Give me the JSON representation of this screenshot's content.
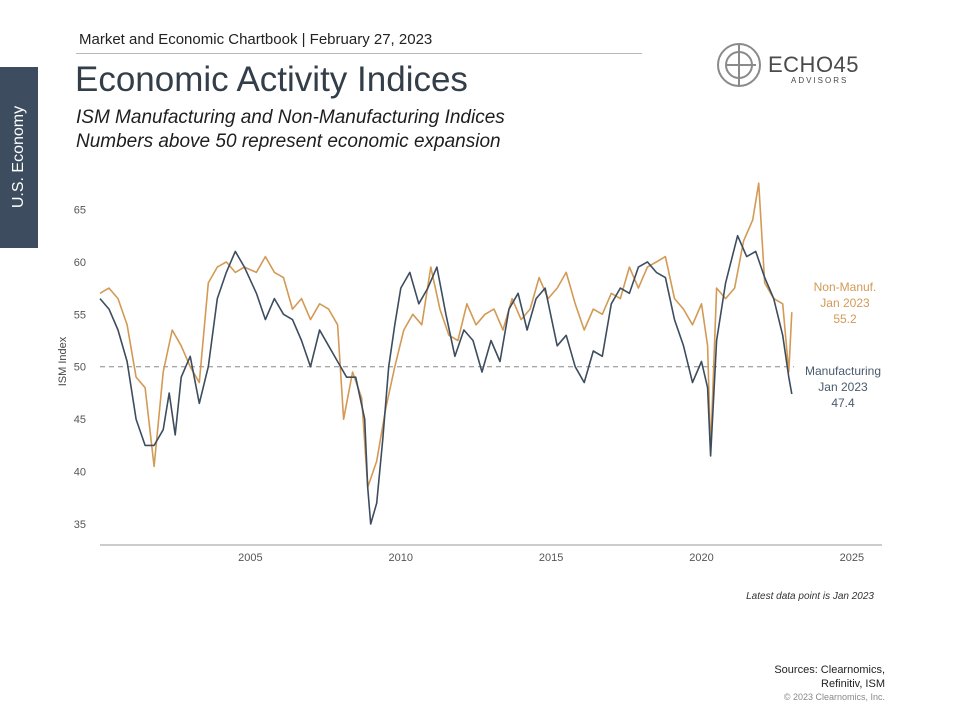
{
  "sidebar": {
    "label": "U.S. Economy"
  },
  "header": {
    "text": "Market and Economic Chartbook | February 27, 2023"
  },
  "title": "Economic Activity Indices",
  "subtitle": {
    "line1": "ISM Manufacturing and Non-Manufacturing Indices",
    "line2": "Numbers above 50 represent economic expansion"
  },
  "logo": {
    "word": "ECHO45",
    "sub": "ADVISORS"
  },
  "annotations": {
    "non_manuf": {
      "line1": "Non-Manuf.",
      "line2": "Jan 2023",
      "line3": "55.2"
    },
    "manuf": {
      "line1": "Manufacturing",
      "line2": "Jan 2023",
      "line3": "47.4"
    }
  },
  "note": "Latest data point is Jan 2023",
  "sources": {
    "line1": "Sources: Clearnomics,",
    "line2": "Refinitiv, ISM"
  },
  "copyright": "© 2023 Clearnomics, Inc.",
  "colors": {
    "manufacturing": "#3d4d5f",
    "non_manufacturing": "#d39a55",
    "reference": "#888888"
  },
  "chart_data": {
    "type": "line",
    "ylabel": "ISM Index",
    "xlim": [
      2000.0,
      2026.0
    ],
    "ylim": [
      33,
      68
    ],
    "x_ticks": [
      2005,
      2010,
      2015,
      2020,
      2025
    ],
    "y_ticks": [
      35,
      40,
      45,
      50,
      55,
      60,
      65
    ],
    "reference_line": 50,
    "series": [
      {
        "name": "Manufacturing",
        "points": [
          [
            2000.0,
            56.5
          ],
          [
            2000.3,
            55.5
          ],
          [
            2000.6,
            53.5
          ],
          [
            2000.9,
            50.5
          ],
          [
            2001.2,
            45.0
          ],
          [
            2001.5,
            42.5
          ],
          [
            2001.8,
            42.5
          ],
          [
            2002.1,
            44.0
          ],
          [
            2002.3,
            47.5
          ],
          [
            2002.5,
            43.5
          ],
          [
            2002.7,
            49.0
          ],
          [
            2003.0,
            51.0
          ],
          [
            2003.3,
            46.5
          ],
          [
            2003.6,
            50.0
          ],
          [
            2003.9,
            56.5
          ],
          [
            2004.2,
            59.0
          ],
          [
            2004.5,
            61.0
          ],
          [
            2004.8,
            59.5
          ],
          [
            2005.2,
            57.0
          ],
          [
            2005.5,
            54.5
          ],
          [
            2005.8,
            56.5
          ],
          [
            2006.1,
            55.0
          ],
          [
            2006.4,
            54.5
          ],
          [
            2006.7,
            52.5
          ],
          [
            2007.0,
            50.0
          ],
          [
            2007.3,
            53.5
          ],
          [
            2007.6,
            52.0
          ],
          [
            2007.9,
            50.5
          ],
          [
            2008.2,
            49.0
          ],
          [
            2008.5,
            49.0
          ],
          [
            2008.8,
            45.0
          ],
          [
            2008.9,
            38.5
          ],
          [
            2009.0,
            35.0
          ],
          [
            2009.2,
            37.0
          ],
          [
            2009.4,
            43.0
          ],
          [
            2009.6,
            50.0
          ],
          [
            2009.8,
            54.0
          ],
          [
            2010.0,
            57.5
          ],
          [
            2010.3,
            59.0
          ],
          [
            2010.6,
            56.0
          ],
          [
            2010.9,
            57.5
          ],
          [
            2011.2,
            59.5
          ],
          [
            2011.5,
            55.0
          ],
          [
            2011.8,
            51.0
          ],
          [
            2012.1,
            53.5
          ],
          [
            2012.4,
            52.5
          ],
          [
            2012.7,
            49.5
          ],
          [
            2013.0,
            52.5
          ],
          [
            2013.3,
            50.5
          ],
          [
            2013.6,
            55.5
          ],
          [
            2013.9,
            57.0
          ],
          [
            2014.2,
            53.5
          ],
          [
            2014.5,
            56.5
          ],
          [
            2014.8,
            57.5
          ],
          [
            2015.2,
            52.0
          ],
          [
            2015.5,
            53.0
          ],
          [
            2015.8,
            50.0
          ],
          [
            2016.1,
            48.5
          ],
          [
            2016.4,
            51.5
          ],
          [
            2016.7,
            51.0
          ],
          [
            2017.0,
            56.0
          ],
          [
            2017.3,
            57.5
          ],
          [
            2017.6,
            57.0
          ],
          [
            2017.9,
            59.5
          ],
          [
            2018.2,
            60.0
          ],
          [
            2018.5,
            59.0
          ],
          [
            2018.8,
            58.5
          ],
          [
            2019.1,
            54.5
          ],
          [
            2019.4,
            52.0
          ],
          [
            2019.7,
            48.5
          ],
          [
            2020.0,
            50.5
          ],
          [
            2020.2,
            48.0
          ],
          [
            2020.3,
            41.5
          ],
          [
            2020.5,
            52.5
          ],
          [
            2020.8,
            58.0
          ],
          [
            2021.2,
            62.5
          ],
          [
            2021.5,
            60.5
          ],
          [
            2021.8,
            61.0
          ],
          [
            2022.1,
            58.5
          ],
          [
            2022.4,
            56.5
          ],
          [
            2022.7,
            53.0
          ],
          [
            2022.9,
            49.0
          ],
          [
            2023.0,
            47.4
          ]
        ]
      },
      {
        "name": "Non-Manuf.",
        "points": [
          [
            2000.0,
            57.0
          ],
          [
            2000.3,
            57.5
          ],
          [
            2000.6,
            56.5
          ],
          [
            2000.9,
            54.0
          ],
          [
            2001.2,
            49.0
          ],
          [
            2001.5,
            48.0
          ],
          [
            2001.8,
            40.5
          ],
          [
            2002.1,
            49.5
          ],
          [
            2002.4,
            53.5
          ],
          [
            2002.7,
            52.0
          ],
          [
            2003.0,
            50.0
          ],
          [
            2003.3,
            48.5
          ],
          [
            2003.6,
            58.0
          ],
          [
            2003.9,
            59.5
          ],
          [
            2004.2,
            60.0
          ],
          [
            2004.5,
            59.0
          ],
          [
            2004.8,
            59.5
          ],
          [
            2005.2,
            59.0
          ],
          [
            2005.5,
            60.5
          ],
          [
            2005.8,
            59.0
          ],
          [
            2006.1,
            58.5
          ],
          [
            2006.4,
            55.5
          ],
          [
            2006.7,
            56.5
          ],
          [
            2007.0,
            54.5
          ],
          [
            2007.3,
            56.0
          ],
          [
            2007.6,
            55.5
          ],
          [
            2007.9,
            54.0
          ],
          [
            2008.1,
            45.0
          ],
          [
            2008.4,
            49.5
          ],
          [
            2008.7,
            47.0
          ],
          [
            2008.9,
            38.5
          ],
          [
            2009.2,
            41.0
          ],
          [
            2009.5,
            46.0
          ],
          [
            2009.8,
            50.0
          ],
          [
            2010.1,
            53.5
          ],
          [
            2010.4,
            55.0
          ],
          [
            2010.7,
            54.0
          ],
          [
            2011.0,
            59.5
          ],
          [
            2011.3,
            55.5
          ],
          [
            2011.6,
            53.0
          ],
          [
            2011.9,
            52.5
          ],
          [
            2012.2,
            56.0
          ],
          [
            2012.5,
            54.0
          ],
          [
            2012.8,
            55.0
          ],
          [
            2013.1,
            55.5
          ],
          [
            2013.4,
            53.5
          ],
          [
            2013.7,
            56.5
          ],
          [
            2014.0,
            54.5
          ],
          [
            2014.3,
            55.5
          ],
          [
            2014.6,
            58.5
          ],
          [
            2014.9,
            56.5
          ],
          [
            2015.2,
            57.5
          ],
          [
            2015.5,
            59.0
          ],
          [
            2015.8,
            56.0
          ],
          [
            2016.1,
            53.5
          ],
          [
            2016.4,
            55.5
          ],
          [
            2016.7,
            55.0
          ],
          [
            2017.0,
            57.0
          ],
          [
            2017.3,
            56.5
          ],
          [
            2017.6,
            59.5
          ],
          [
            2017.9,
            57.5
          ],
          [
            2018.2,
            59.5
          ],
          [
            2018.5,
            60.0
          ],
          [
            2018.8,
            60.5
          ],
          [
            2019.1,
            56.5
          ],
          [
            2019.4,
            55.5
          ],
          [
            2019.7,
            54.0
          ],
          [
            2020.0,
            56.0
          ],
          [
            2020.2,
            52.0
          ],
          [
            2020.3,
            42.0
          ],
          [
            2020.5,
            57.5
          ],
          [
            2020.8,
            56.5
          ],
          [
            2021.1,
            57.5
          ],
          [
            2021.4,
            62.0
          ],
          [
            2021.7,
            64.0
          ],
          [
            2021.9,
            67.5
          ],
          [
            2022.1,
            58.0
          ],
          [
            2022.4,
            56.5
          ],
          [
            2022.7,
            56.0
          ],
          [
            2022.9,
            49.5
          ],
          [
            2023.0,
            55.2
          ]
        ]
      }
    ]
  }
}
